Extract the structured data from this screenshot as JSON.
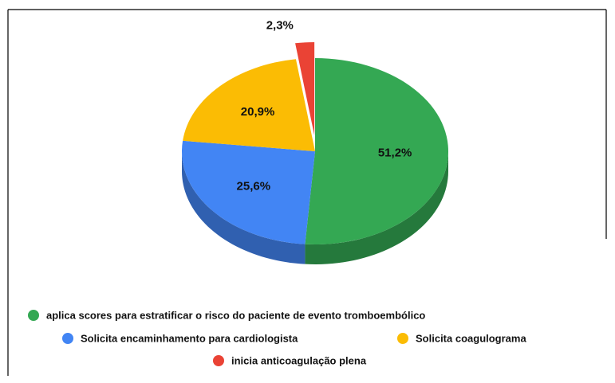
{
  "chart_data": {
    "type": "pie3d",
    "categories": [
      "aplica scores para estratificar o risco do paciente de evento tromboembólico",
      "Solicita encaminhamento para cardiologista",
      "Solicita coagulograma",
      "inicia anticoagulação plena"
    ],
    "values": [
      51.2,
      25.6,
      20.9,
      2.3
    ],
    "value_labels": [
      "51,2%",
      "25,6%",
      "20,9%",
      "2,3%"
    ],
    "colors": [
      "#34a853",
      "#4285f4",
      "#fbbc04",
      "#ea4335"
    ],
    "exploded": [
      false,
      false,
      false,
      true
    ],
    "legend": "bottom"
  }
}
